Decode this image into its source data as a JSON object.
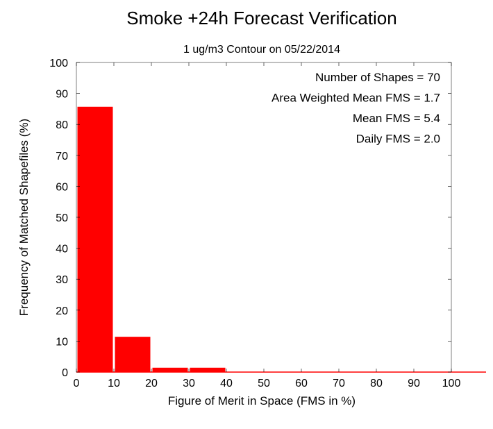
{
  "chart_data": {
    "type": "bar",
    "title": "Smoke +24h Forecast Verification",
    "subtitle": "1 ug/m3 Contour on 05/22/2014",
    "xlabel": "Figure of Merit in Space (FMS in %)",
    "ylabel": "Frequency of Matched Shapefiles (%)",
    "bin_edges": [
      0,
      10,
      20,
      30,
      40,
      50,
      60,
      70,
      80,
      90,
      100
    ],
    "values": [
      85.7,
      11.4,
      1.4,
      1.4,
      0,
      0,
      0,
      0,
      0,
      0
    ],
    "xlim": [
      0,
      100
    ],
    "ylim": [
      0,
      100
    ],
    "xticks": [
      "0",
      "10",
      "20",
      "30",
      "40",
      "50",
      "60",
      "70",
      "80",
      "90",
      "100"
    ],
    "yticks": [
      "0",
      "10",
      "20",
      "30",
      "40",
      "50",
      "60",
      "70",
      "80",
      "90",
      "100"
    ],
    "bar_color": "#ff0000",
    "grid": false,
    "annotations": [
      "Number of Shapes = 70",
      "Area Weighted Mean FMS = 1.7",
      "Mean FMS = 5.4",
      "Daily FMS = 2.0"
    ]
  }
}
